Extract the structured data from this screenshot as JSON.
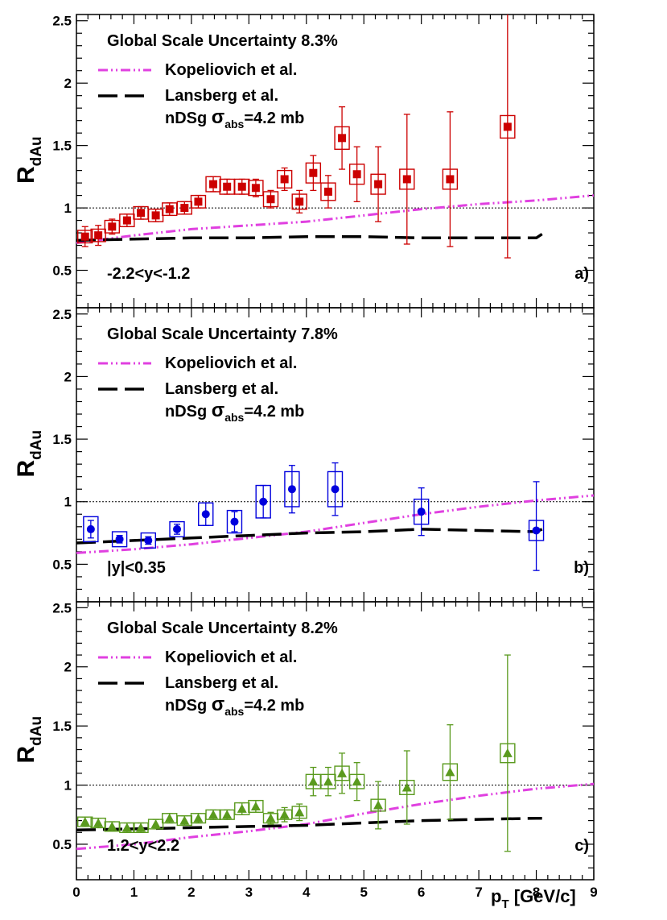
{
  "chart_data": {
    "type": "scatter",
    "x_axis": {
      "label": "p",
      "label_sub": "T",
      "label_tail": " [GeV/c]",
      "range": [
        0,
        9
      ],
      "tick_labels": [
        "0",
        "1",
        "2",
        "3",
        "4",
        "5",
        "6",
        "7",
        "8",
        "9"
      ]
    },
    "y_axis": {
      "label": "R",
      "label_sub": "dAu",
      "range": [
        0.2,
        2.55
      ],
      "tick_labels": [
        "0.5",
        "1",
        "1.5",
        "2",
        "2.5"
      ]
    },
    "reference_line_y": 1.0,
    "panels": [
      {
        "id": "a",
        "tag": "a)",
        "rapidity_label": "-2.2<y<-1.2",
        "scale_uncertainty": "Global Scale Uncertainty 8.3%",
        "legend": {
          "model_1": "Kopeliovich et al.",
          "model_2": "Lansberg et al.",
          "model_2_detail_pre": "nDSg ",
          "model_2_detail_sigma": "σ",
          "model_2_detail_sub": "abs",
          "model_2_detail_post": "=4.2 mb"
        },
        "marker": "square",
        "color": "#cc0000",
        "points": [
          {
            "x": 0.15,
            "y": 0.77,
            "err_lo": 0.08,
            "err_hi": 0.08,
            "sys": 0.05
          },
          {
            "x": 0.38,
            "y": 0.78,
            "err_lo": 0.08,
            "err_hi": 0.08,
            "sys": 0.05
          },
          {
            "x": 0.62,
            "y": 0.85,
            "err_lo": 0.06,
            "err_hi": 0.06,
            "sys": 0.05
          },
          {
            "x": 0.88,
            "y": 0.9,
            "err_lo": 0.05,
            "err_hi": 0.05,
            "sys": 0.05
          },
          {
            "x": 1.12,
            "y": 0.96,
            "err_lo": 0.05,
            "err_hi": 0.05,
            "sys": 0.05
          },
          {
            "x": 1.38,
            "y": 0.94,
            "err_lo": 0.05,
            "err_hi": 0.05,
            "sys": 0.05
          },
          {
            "x": 1.62,
            "y": 0.99,
            "err_lo": 0.05,
            "err_hi": 0.05,
            "sys": 0.05
          },
          {
            "x": 1.88,
            "y": 1.0,
            "err_lo": 0.05,
            "err_hi": 0.05,
            "sys": 0.05
          },
          {
            "x": 2.12,
            "y": 1.05,
            "err_lo": 0.05,
            "err_hi": 0.05,
            "sys": 0.05
          },
          {
            "x": 2.38,
            "y": 1.19,
            "err_lo": 0.06,
            "err_hi": 0.06,
            "sys": 0.06
          },
          {
            "x": 2.62,
            "y": 1.17,
            "err_lo": 0.06,
            "err_hi": 0.06,
            "sys": 0.06
          },
          {
            "x": 2.88,
            "y": 1.17,
            "err_lo": 0.06,
            "err_hi": 0.06,
            "sys": 0.06
          },
          {
            "x": 3.12,
            "y": 1.16,
            "err_lo": 0.07,
            "err_hi": 0.07,
            "sys": 0.06
          },
          {
            "x": 3.38,
            "y": 1.07,
            "err_lo": 0.07,
            "err_hi": 0.07,
            "sys": 0.06
          },
          {
            "x": 3.62,
            "y": 1.23,
            "err_lo": 0.09,
            "err_hi": 0.09,
            "sys": 0.07
          },
          {
            "x": 3.88,
            "y": 1.05,
            "err_lo": 0.09,
            "err_hi": 0.09,
            "sys": 0.06
          },
          {
            "x": 4.12,
            "y": 1.28,
            "err_lo": 0.14,
            "err_hi": 0.14,
            "sys": 0.08
          },
          {
            "x": 4.38,
            "y": 1.13,
            "err_lo": 0.13,
            "err_hi": 0.13,
            "sys": 0.07
          },
          {
            "x": 4.62,
            "y": 1.56,
            "err_lo": 0.25,
            "err_hi": 0.25,
            "sys": 0.09
          },
          {
            "x": 4.88,
            "y": 1.27,
            "err_lo": 0.22,
            "err_hi": 0.22,
            "sys": 0.08
          },
          {
            "x": 5.25,
            "y": 1.19,
            "err_lo": 0.3,
            "err_hi": 0.3,
            "sys": 0.08
          },
          {
            "x": 5.75,
            "y": 1.23,
            "err_lo": 0.52,
            "err_hi": 0.52,
            "sys": 0.08
          },
          {
            "x": 6.5,
            "y": 1.23,
            "err_lo": 0.54,
            "err_hi": 0.54,
            "sys": 0.08
          },
          {
            "x": 7.5,
            "y": 1.65,
            "err_lo": 1.05,
            "err_hi": 0.95,
            "sys": 0.09
          }
        ],
        "kopeliovich": {
          "x": [
            0,
            1,
            2,
            3,
            4,
            5,
            6,
            7,
            8,
            9
          ],
          "y": [
            0.72,
            0.78,
            0.83,
            0.86,
            0.89,
            0.94,
            0.99,
            1.03,
            1.06,
            1.1
          ]
        },
        "lansberg": {
          "x": [
            0,
            1,
            2,
            3,
            4,
            5,
            6,
            7,
            8,
            8.1
          ],
          "y": [
            0.74,
            0.75,
            0.76,
            0.76,
            0.77,
            0.77,
            0.76,
            0.76,
            0.76,
            0.79
          ]
        }
      },
      {
        "id": "b",
        "tag": "b)",
        "rapidity_label": "|y|<0.35",
        "scale_uncertainty": "Global Scale Uncertainty 7.8%",
        "legend": {
          "model_1": "Kopeliovich et al.",
          "model_2": "Lansberg et al.",
          "model_2_detail_pre": "nDSg ",
          "model_2_detail_sigma": "σ",
          "model_2_detail_sub": "abs",
          "model_2_detail_post": "=4.2 mb"
        },
        "marker": "circle",
        "color": "#0000dd",
        "points": [
          {
            "x": 0.25,
            "y": 0.78,
            "err_lo": 0.07,
            "err_hi": 0.07,
            "sys": 0.1
          },
          {
            "x": 0.75,
            "y": 0.7,
            "err_lo": 0.03,
            "err_hi": 0.03,
            "sys": 0.06
          },
          {
            "x": 1.25,
            "y": 0.69,
            "err_lo": 0.03,
            "err_hi": 0.03,
            "sys": 0.06
          },
          {
            "x": 1.75,
            "y": 0.78,
            "err_lo": 0.04,
            "err_hi": 0.04,
            "sys": 0.06
          },
          {
            "x": 2.25,
            "y": 0.9,
            "err_lo": 0.09,
            "err_hi": 0.09,
            "sys": 0.09
          },
          {
            "x": 2.75,
            "y": 0.84,
            "err_lo": 0.08,
            "err_hi": 0.08,
            "sys": 0.09
          },
          {
            "x": 3.25,
            "y": 1.0,
            "err_lo": 0.13,
            "err_hi": 0.13,
            "sys": 0.13
          },
          {
            "x": 3.75,
            "y": 1.1,
            "err_lo": 0.19,
            "err_hi": 0.19,
            "sys": 0.14
          },
          {
            "x": 4.5,
            "y": 1.1,
            "err_lo": 0.21,
            "err_hi": 0.21,
            "sys": 0.14
          },
          {
            "x": 6.0,
            "y": 0.92,
            "err_lo": 0.19,
            "err_hi": 0.19,
            "sys": 0.1
          },
          {
            "x": 8.0,
            "y": 0.77,
            "err_lo": 0.32,
            "err_hi": 0.39,
            "sys": 0.08
          }
        ],
        "kopeliovich": {
          "x": [
            0,
            1,
            2,
            3,
            4,
            5,
            6,
            7,
            8,
            9
          ],
          "y": [
            0.59,
            0.62,
            0.66,
            0.71,
            0.76,
            0.83,
            0.9,
            0.96,
            1.01,
            1.05
          ]
        },
        "lansberg": {
          "x": [
            0,
            1,
            2,
            3,
            4,
            5,
            6,
            7,
            8,
            8.1
          ],
          "y": [
            0.67,
            0.69,
            0.71,
            0.73,
            0.75,
            0.76,
            0.78,
            0.77,
            0.76,
            0.78
          ]
        }
      },
      {
        "id": "c",
        "tag": "c)",
        "rapidity_label": "1.2<y<2.2",
        "scale_uncertainty": "Global Scale Uncertainty 8.2%",
        "legend": {
          "model_1": "Kopeliovich et al.",
          "model_2": "Lansberg et al.",
          "model_2_detail_pre": "nDSg ",
          "model_2_detail_sigma": "σ",
          "model_2_detail_sub": "abs",
          "model_2_detail_post": "=4.2 mb"
        },
        "marker": "triangle",
        "color": "#5a9a1e",
        "points": [
          {
            "x": 0.15,
            "y": 0.69,
            "err_lo": 0.04,
            "err_hi": 0.04,
            "sys": 0.04
          },
          {
            "x": 0.38,
            "y": 0.68,
            "err_lo": 0.04,
            "err_hi": 0.04,
            "sys": 0.04
          },
          {
            "x": 0.62,
            "y": 0.65,
            "err_lo": 0.04,
            "err_hi": 0.04,
            "sys": 0.04
          },
          {
            "x": 0.88,
            "y": 0.64,
            "err_lo": 0.04,
            "err_hi": 0.04,
            "sys": 0.04
          },
          {
            "x": 1.12,
            "y": 0.64,
            "err_lo": 0.04,
            "err_hi": 0.04,
            "sys": 0.04
          },
          {
            "x": 1.38,
            "y": 0.67,
            "err_lo": 0.04,
            "err_hi": 0.04,
            "sys": 0.04
          },
          {
            "x": 1.62,
            "y": 0.72,
            "err_lo": 0.04,
            "err_hi": 0.04,
            "sys": 0.04
          },
          {
            "x": 1.88,
            "y": 0.7,
            "err_lo": 0.04,
            "err_hi": 0.04,
            "sys": 0.04
          },
          {
            "x": 2.12,
            "y": 0.72,
            "err_lo": 0.04,
            "err_hi": 0.04,
            "sys": 0.04
          },
          {
            "x": 2.38,
            "y": 0.75,
            "err_lo": 0.04,
            "err_hi": 0.04,
            "sys": 0.04
          },
          {
            "x": 2.62,
            "y": 0.75,
            "err_lo": 0.04,
            "err_hi": 0.04,
            "sys": 0.04
          },
          {
            "x": 2.88,
            "y": 0.8,
            "err_lo": 0.05,
            "err_hi": 0.05,
            "sys": 0.05
          },
          {
            "x": 3.12,
            "y": 0.82,
            "err_lo": 0.05,
            "err_hi": 0.05,
            "sys": 0.05
          },
          {
            "x": 3.38,
            "y": 0.72,
            "err_lo": 0.05,
            "err_hi": 0.05,
            "sys": 0.04
          },
          {
            "x": 3.62,
            "y": 0.75,
            "err_lo": 0.06,
            "err_hi": 0.06,
            "sys": 0.04
          },
          {
            "x": 3.88,
            "y": 0.77,
            "err_lo": 0.07,
            "err_hi": 0.07,
            "sys": 0.05
          },
          {
            "x": 4.12,
            "y": 1.03,
            "err_lo": 0.12,
            "err_hi": 0.12,
            "sys": 0.06
          },
          {
            "x": 4.38,
            "y": 1.03,
            "err_lo": 0.12,
            "err_hi": 0.12,
            "sys": 0.06
          },
          {
            "x": 4.62,
            "y": 1.1,
            "err_lo": 0.17,
            "err_hi": 0.17,
            "sys": 0.06
          },
          {
            "x": 4.88,
            "y": 1.03,
            "err_lo": 0.16,
            "err_hi": 0.16,
            "sys": 0.06
          },
          {
            "x": 5.25,
            "y": 0.83,
            "err_lo": 0.2,
            "err_hi": 0.2,
            "sys": 0.05
          },
          {
            "x": 5.75,
            "y": 0.98,
            "err_lo": 0.31,
            "err_hi": 0.31,
            "sys": 0.06
          },
          {
            "x": 6.5,
            "y": 1.11,
            "err_lo": 0.4,
            "err_hi": 0.4,
            "sys": 0.07
          },
          {
            "x": 7.5,
            "y": 1.27,
            "err_lo": 0.83,
            "err_hi": 0.83,
            "sys": 0.08
          }
        ],
        "kopeliovich": {
          "x": [
            0,
            1,
            2,
            3,
            4,
            5,
            6,
            7,
            8,
            9
          ],
          "y": [
            0.46,
            0.5,
            0.56,
            0.61,
            0.67,
            0.76,
            0.84,
            0.91,
            0.97,
            1.01
          ]
        },
        "lansberg": {
          "x": [
            0,
            1,
            2,
            3,
            4,
            5,
            6,
            7,
            8,
            8.1
          ],
          "y": [
            0.62,
            0.63,
            0.64,
            0.65,
            0.66,
            0.68,
            0.7,
            0.71,
            0.72,
            0.72
          ]
        }
      }
    ]
  },
  "colors": {
    "kopeliovich": "#e040e0",
    "lansberg": "#000000",
    "axis": "#000000",
    "reference": "#000000"
  }
}
